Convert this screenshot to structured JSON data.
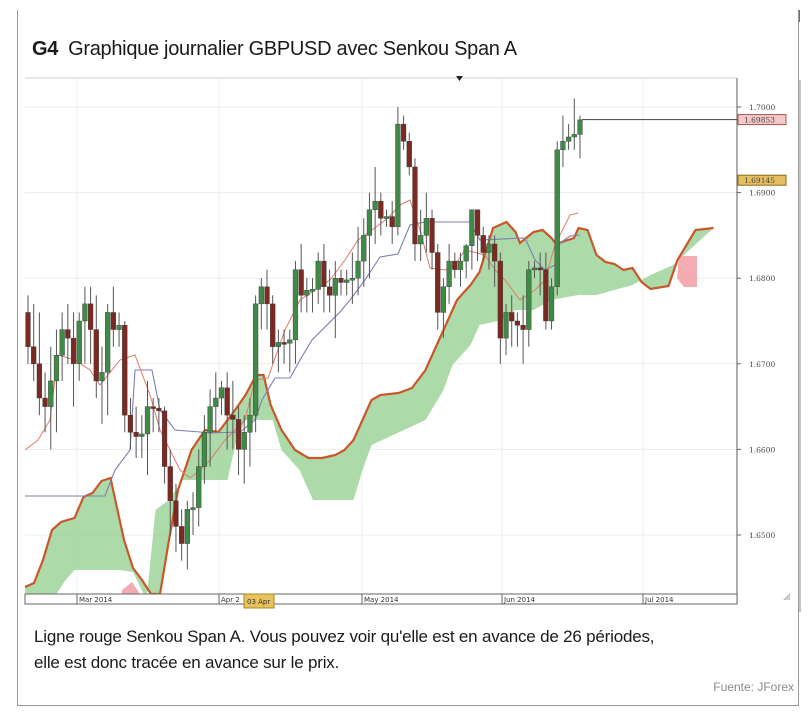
{
  "header": {
    "figure_code": "G4",
    "title": "Graphique journalier GBPUSD avec Senkou Span A"
  },
  "caption": {
    "line1": "Ligne rouge Senkou Span A. Vous pouvez voir qu'elle est en avance de 26 périodes,",
    "line2": "elle est donc tracée en avance sur le prix."
  },
  "source": "Fuente: JForex",
  "colors": {
    "frame_bar": "#2e9a3e",
    "bull_candle": "#3f8a47",
    "bear_candle": "#7a2a22",
    "senkou_span_a": "#c8572a",
    "tenkan": "#e07a6a",
    "kijun": "#7b7fb0",
    "cloud_bull": "#9fd39a",
    "cloud_bear": "#f2a3a8",
    "price_marker": "#f7c8c8",
    "price_marker2": "#e6c060"
  },
  "chart_data": {
    "type": "candlestick",
    "title": "Graphique journalier GBPUSD avec Senkou Span A",
    "instrument": "GBPUSD",
    "timeframe": "daily",
    "xlabel": "",
    "ylabel": "",
    "y_ticks": [
      1.7,
      1.69,
      1.68,
      1.67,
      1.66,
      1.65
    ],
    "y_tick_labels": [
      "1.7000",
      "1.6900",
      "1.6800",
      "1.6700",
      "1.6600",
      "1.6500"
    ],
    "ylim": [
      1.645,
      1.706
    ],
    "x_tick_labels": [
      "Mar 2014",
      "Apr 2",
      "May 2014",
      "Jun 2014",
      "Jul 2014"
    ],
    "cursor_date_label": "03 Apr",
    "price_markers": [
      {
        "label": "1.69853",
        "value": 1.69853,
        "type": "last-price"
      },
      {
        "label": "1.69145",
        "value": 1.69145,
        "type": "level"
      }
    ],
    "grid": true,
    "indicators": [
      "Senkou Span A (red/orange line)",
      "Ichimoku cloud (green bullish / red bearish)",
      "Tenkan-sen (light red)",
      "Kijun-sen (blue-grey)"
    ],
    "candles_approx": [
      {
        "o": 1.676,
        "h": 1.678,
        "l": 1.67,
        "c": 1.672
      },
      {
        "o": 1.672,
        "h": 1.677,
        "l": 1.668,
        "c": 1.67
      },
      {
        "o": 1.67,
        "h": 1.676,
        "l": 1.664,
        "c": 1.666
      },
      {
        "o": 1.666,
        "h": 1.669,
        "l": 1.662,
        "c": 1.665
      },
      {
        "o": 1.665,
        "h": 1.672,
        "l": 1.66,
        "c": 1.668
      },
      {
        "o": 1.668,
        "h": 1.674,
        "l": 1.662,
        "c": 1.671
      },
      {
        "o": 1.671,
        "h": 1.676,
        "l": 1.668,
        "c": 1.674
      },
      {
        "o": 1.674,
        "h": 1.677,
        "l": 1.67,
        "c": 1.673
      },
      {
        "o": 1.673,
        "h": 1.676,
        "l": 1.665,
        "c": 1.67
      },
      {
        "o": 1.67,
        "h": 1.676,
        "l": 1.668,
        "c": 1.675
      },
      {
        "o": 1.675,
        "h": 1.679,
        "l": 1.67,
        "c": 1.677
      },
      {
        "o": 1.677,
        "h": 1.679,
        "l": 1.67,
        "c": 1.674
      },
      {
        "o": 1.674,
        "h": 1.678,
        "l": 1.666,
        "c": 1.668
      },
      {
        "o": 1.668,
        "h": 1.672,
        "l": 1.663,
        "c": 1.669
      },
      {
        "o": 1.669,
        "h": 1.677,
        "l": 1.664,
        "c": 1.676
      },
      {
        "o": 1.676,
        "h": 1.679,
        "l": 1.672,
        "c": 1.674
      },
      {
        "o": 1.674,
        "h": 1.676,
        "l": 1.672,
        "c": 1.6745
      },
      {
        "o": 1.6745,
        "h": 1.675,
        "l": 1.662,
        "c": 1.664
      },
      {
        "o": 1.664,
        "h": 1.666,
        "l": 1.66,
        "c": 1.662
      },
      {
        "o": 1.662,
        "h": 1.665,
        "l": 1.659,
        "c": 1.6615
      },
      {
        "o": 1.6615,
        "h": 1.664,
        "l": 1.659,
        "c": 1.6618
      },
      {
        "o": 1.6618,
        "h": 1.668,
        "l": 1.657,
        "c": 1.665
      },
      {
        "o": 1.665,
        "h": 1.666,
        "l": 1.662,
        "c": 1.6648
      },
      {
        "o": 1.6648,
        "h": 1.666,
        "l": 1.662,
        "c": 1.6645
      },
      {
        "o": 1.6645,
        "h": 1.665,
        "l": 1.656,
        "c": 1.658
      },
      {
        "o": 1.658,
        "h": 1.66,
        "l": 1.65,
        "c": 1.654
      },
      {
        "o": 1.654,
        "h": 1.656,
        "l": 1.648,
        "c": 1.651
      },
      {
        "o": 1.651,
        "h": 1.653,
        "l": 1.647,
        "c": 1.649
      },
      {
        "o": 1.649,
        "h": 1.654,
        "l": 1.646,
        "c": 1.653
      },
      {
        "o": 1.653,
        "h": 1.655,
        "l": 1.65,
        "c": 1.6532
      },
      {
        "o": 1.6532,
        "h": 1.66,
        "l": 1.651,
        "c": 1.658
      },
      {
        "o": 1.658,
        "h": 1.664,
        "l": 1.656,
        "c": 1.662
      },
      {
        "o": 1.662,
        "h": 1.667,
        "l": 1.658,
        "c": 1.665
      },
      {
        "o": 1.665,
        "h": 1.669,
        "l": 1.662,
        "c": 1.666
      },
      {
        "o": 1.666,
        "h": 1.668,
        "l": 1.664,
        "c": 1.6672
      },
      {
        "o": 1.6672,
        "h": 1.669,
        "l": 1.66,
        "c": 1.664
      },
      {
        "o": 1.664,
        "h": 1.668,
        "l": 1.66,
        "c": 1.6635
      },
      {
        "o": 1.6635,
        "h": 1.665,
        "l": 1.657,
        "c": 1.66
      },
      {
        "o": 1.66,
        "h": 1.664,
        "l": 1.656,
        "c": 1.662
      },
      {
        "o": 1.662,
        "h": 1.666,
        "l": 1.658,
        "c": 1.664
      },
      {
        "o": 1.664,
        "h": 1.678,
        "l": 1.662,
        "c": 1.677
      },
      {
        "o": 1.677,
        "h": 1.68,
        "l": 1.674,
        "c": 1.679
      },
      {
        "o": 1.679,
        "h": 1.681,
        "l": 1.674,
        "c": 1.677
      },
      {
        "o": 1.677,
        "h": 1.678,
        "l": 1.67,
        "c": 1.672
      },
      {
        "o": 1.672,
        "h": 1.674,
        "l": 1.669,
        "c": 1.6725
      },
      {
        "o": 1.6725,
        "h": 1.674,
        "l": 1.67,
        "c": 1.6724
      },
      {
        "o": 1.6724,
        "h": 1.674,
        "l": 1.669,
        "c": 1.6728
      },
      {
        "o": 1.6728,
        "h": 1.682,
        "l": 1.67,
        "c": 1.681
      },
      {
        "o": 1.681,
        "h": 1.684,
        "l": 1.676,
        "c": 1.678
      },
      {
        "o": 1.678,
        "h": 1.68,
        "l": 1.676,
        "c": 1.6786
      },
      {
        "o": 1.6786,
        "h": 1.68,
        "l": 1.676,
        "c": 1.6787
      },
      {
        "o": 1.6787,
        "h": 1.683,
        "l": 1.677,
        "c": 1.682
      },
      {
        "o": 1.682,
        "h": 1.684,
        "l": 1.676,
        "c": 1.679
      },
      {
        "o": 1.679,
        "h": 1.681,
        "l": 1.676,
        "c": 1.678
      },
      {
        "o": 1.678,
        "h": 1.682,
        "l": 1.673,
        "c": 1.68
      },
      {
        "o": 1.68,
        "h": 1.681,
        "l": 1.678,
        "c": 1.6795
      },
      {
        "o": 1.6795,
        "h": 1.681,
        "l": 1.678,
        "c": 1.6798
      },
      {
        "o": 1.6798,
        "h": 1.683,
        "l": 1.677,
        "c": 1.68
      },
      {
        "o": 1.68,
        "h": 1.686,
        "l": 1.678,
        "c": 1.682
      },
      {
        "o": 1.682,
        "h": 1.687,
        "l": 1.679,
        "c": 1.685
      },
      {
        "o": 1.685,
        "h": 1.69,
        "l": 1.68,
        "c": 1.688
      },
      {
        "o": 1.688,
        "h": 1.693,
        "l": 1.684,
        "c": 1.689
      },
      {
        "o": 1.689,
        "h": 1.69,
        "l": 1.685,
        "c": 1.687
      },
      {
        "o": 1.687,
        "h": 1.688,
        "l": 1.686,
        "c": 1.6872
      },
      {
        "o": 1.6872,
        "h": 1.689,
        "l": 1.684,
        "c": 1.686
      },
      {
        "o": 1.686,
        "h": 1.7,
        "l": 1.685,
        "c": 1.698
      },
      {
        "o": 1.698,
        "h": 1.699,
        "l": 1.695,
        "c": 1.696
      },
      {
        "o": 1.696,
        "h": 1.697,
        "l": 1.692,
        "c": 1.693
      },
      {
        "o": 1.693,
        "h": 1.694,
        "l": 1.682,
        "c": 1.684
      },
      {
        "o": 1.684,
        "h": 1.688,
        "l": 1.682,
        "c": 1.685
      },
      {
        "o": 1.685,
        "h": 1.69,
        "l": 1.683,
        "c": 1.687
      },
      {
        "o": 1.687,
        "h": 1.688,
        "l": 1.681,
        "c": 1.683
      },
      {
        "o": 1.683,
        "h": 1.684,
        "l": 1.674,
        "c": 1.676
      },
      {
        "o": 1.676,
        "h": 1.68,
        "l": 1.673,
        "c": 1.679
      },
      {
        "o": 1.679,
        "h": 1.684,
        "l": 1.677,
        "c": 1.682
      },
      {
        "o": 1.682,
        "h": 1.683,
        "l": 1.68,
        "c": 1.681
      },
      {
        "o": 1.681,
        "h": 1.683,
        "l": 1.679,
        "c": 1.682
      },
      {
        "o": 1.682,
        "h": 1.684,
        "l": 1.68,
        "c": 1.6838
      },
      {
        "o": 1.6838,
        "h": 1.688,
        "l": 1.681,
        "c": 1.688
      },
      {
        "o": 1.688,
        "h": 1.688,
        "l": 1.682,
        "c": 1.685
      },
      {
        "o": 1.685,
        "h": 1.686,
        "l": 1.682,
        "c": 1.683
      },
      {
        "o": 1.683,
        "h": 1.685,
        "l": 1.681,
        "c": 1.684
      },
      {
        "o": 1.684,
        "h": 1.685,
        "l": 1.679,
        "c": 1.682
      },
      {
        "o": 1.682,
        "h": 1.683,
        "l": 1.67,
        "c": 1.673
      },
      {
        "o": 1.673,
        "h": 1.677,
        "l": 1.671,
        "c": 1.676
      },
      {
        "o": 1.676,
        "h": 1.678,
        "l": 1.672,
        "c": 1.675
      },
      {
        "o": 1.675,
        "h": 1.676,
        "l": 1.672,
        "c": 1.6745
      },
      {
        "o": 1.6745,
        "h": 1.678,
        "l": 1.67,
        "c": 1.674
      },
      {
        "o": 1.674,
        "h": 1.682,
        "l": 1.672,
        "c": 1.681
      },
      {
        "o": 1.681,
        "h": 1.682,
        "l": 1.68,
        "c": 1.6812
      },
      {
        "o": 1.6812,
        "h": 1.683,
        "l": 1.678,
        "c": 1.681
      },
      {
        "o": 1.681,
        "h": 1.683,
        "l": 1.674,
        "c": 1.675
      },
      {
        "o": 1.675,
        "h": 1.68,
        "l": 1.674,
        "c": 1.679
      },
      {
        "o": 1.679,
        "h": 1.696,
        "l": 1.678,
        "c": 1.695
      },
      {
        "o": 1.695,
        "h": 1.699,
        "l": 1.693,
        "c": 1.696
      },
      {
        "o": 1.696,
        "h": 1.698,
        "l": 1.695,
        "c": 1.6965
      },
      {
        "o": 1.6965,
        "h": 1.701,
        "l": 1.695,
        "c": 1.6968
      },
      {
        "o": 1.6968,
        "h": 1.699,
        "l": 1.694,
        "c": 1.6985
      }
    ]
  }
}
